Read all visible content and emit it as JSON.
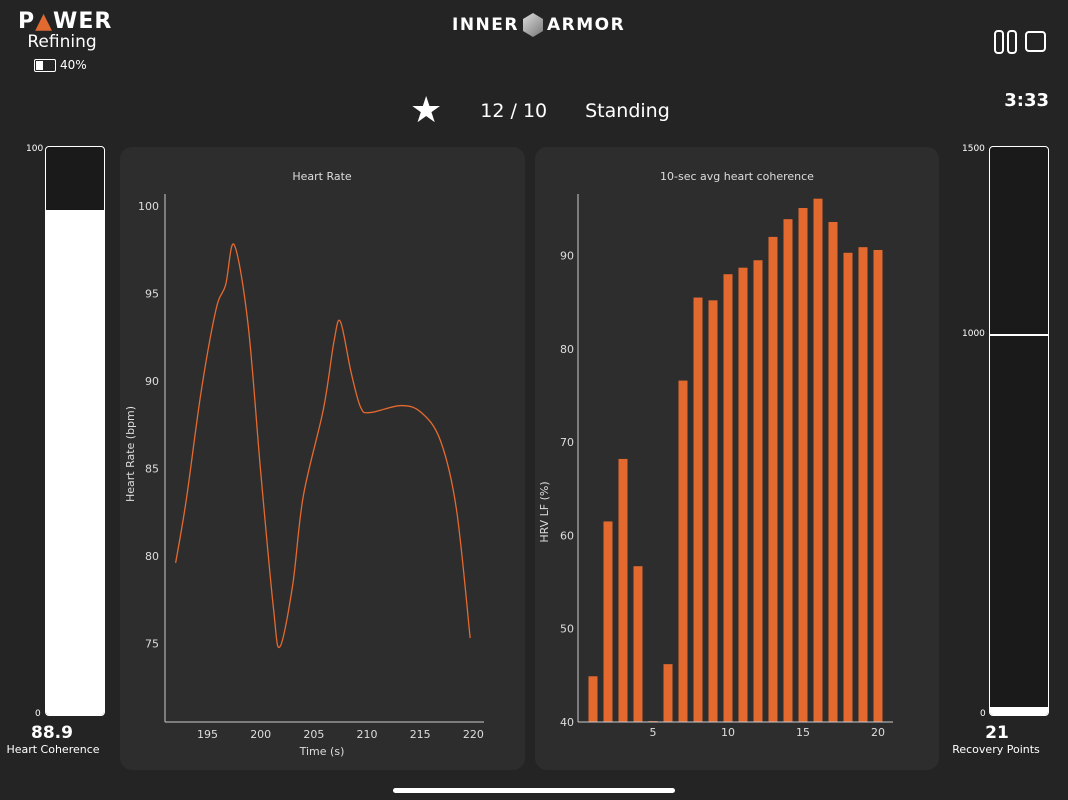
{
  "header": {
    "app_logo": "POWER",
    "mode": "Refining",
    "battery_percent_label": "40%",
    "battery_level": 0.4,
    "brand_left": "INNER",
    "brand_right": "ARMOR",
    "pause_icon": "pause-icon",
    "stop_icon": "stop-icon",
    "timer": "3:33",
    "rating_icon": "star-icon",
    "count": "12 / 10",
    "posture": "Standing"
  },
  "left_gauge": {
    "max_label": "100",
    "min_label": "0",
    "value": 88.9,
    "value_label": "88.9",
    "label": "Heart Coherence",
    "max": 100
  },
  "right_gauge": {
    "max_label": "1500",
    "mid_label": "1000",
    "min_label": "0",
    "value": 21,
    "value_label": "21",
    "label": "Recovery Points",
    "max": 1500,
    "marker": 1000
  },
  "colors": {
    "accent": "#e4692f",
    "panel": "#2d2d2d",
    "background": "#252425"
  },
  "chart_data": [
    {
      "type": "line",
      "title": "Heart Rate",
      "xlabel": "Time (s)",
      "ylabel": "Heart Rate (bpm)",
      "xlim": [
        191,
        221
      ],
      "ylim": [
        70.5,
        100.7
      ],
      "xticks": [
        "195",
        "200",
        "205",
        "210",
        "215",
        "220"
      ],
      "yticks": [
        "75",
        "80",
        "85",
        "90",
        "95",
        "100"
      ],
      "x": [
        192,
        193,
        194.4,
        195.8,
        196.7,
        197.5,
        198.8,
        200,
        201.2,
        201.8,
        203,
        204,
        205.9,
        206.9,
        207.5,
        208.5,
        209.4,
        210.3,
        213.2,
        215.1,
        216.9,
        218.4,
        219.7
      ],
      "y": [
        79.6,
        83.2,
        89.4,
        94.1,
        95.5,
        97.8,
        93.3,
        84.8,
        77,
        74.8,
        78.3,
        83.4,
        88.4,
        92.3,
        93.4,
        90.5,
        88.5,
        88.2,
        88.6,
        88.2,
        86.6,
        82.7,
        75.3
      ]
    },
    {
      "type": "bar",
      "title": "10-sec avg heart coherence",
      "xlabel": "",
      "ylabel": "HRV LF (%)",
      "xlim": [
        0,
        21
      ],
      "ylim": [
        40,
        96.6
      ],
      "xticks": [
        "5",
        "10",
        "15",
        "20"
      ],
      "yticks": [
        "40",
        "50",
        "60",
        "70",
        "80",
        "90"
      ],
      "categories": [
        1,
        2,
        3,
        4,
        5,
        6,
        7,
        8,
        9,
        10,
        11,
        12,
        13,
        14,
        15,
        16,
        17,
        18,
        19,
        20
      ],
      "values": [
        44.9,
        61.5,
        68.2,
        56.7,
        40.1,
        46.2,
        76.6,
        85.5,
        85.2,
        88.0,
        88.7,
        89.5,
        92.0,
        93.9,
        95.1,
        96.1,
        93.6,
        90.3,
        90.9,
        90.6
      ]
    }
  ]
}
